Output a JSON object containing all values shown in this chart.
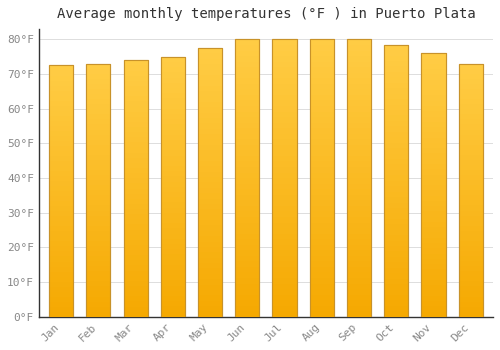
{
  "title": "Average monthly temperatures (°F ) in Puerto Plata",
  "months": [
    "Jan",
    "Feb",
    "Mar",
    "Apr",
    "May",
    "Jun",
    "Jul",
    "Aug",
    "Sep",
    "Oct",
    "Nov",
    "Dec"
  ],
  "values": [
    72.5,
    73.0,
    74.0,
    75.0,
    77.5,
    80.0,
    80.0,
    80.0,
    80.0,
    78.5,
    76.0,
    73.0
  ],
  "bar_color_light": "#FFCC44",
  "bar_color_dark": "#F5A800",
  "bar_edge_color": "#C8922A",
  "background_color": "#FFFFFF",
  "grid_color": "#DDDDDD",
  "ytick_labels": [
    "0°F",
    "10°F",
    "20°F",
    "30°F",
    "40°F",
    "50°F",
    "60°F",
    "70°F",
    "80°F"
  ],
  "ytick_values": [
    0,
    10,
    20,
    30,
    40,
    50,
    60,
    70,
    80
  ],
  "ylim": [
    0,
    83
  ],
  "title_fontsize": 10,
  "tick_fontsize": 8,
  "font_family": "monospace"
}
